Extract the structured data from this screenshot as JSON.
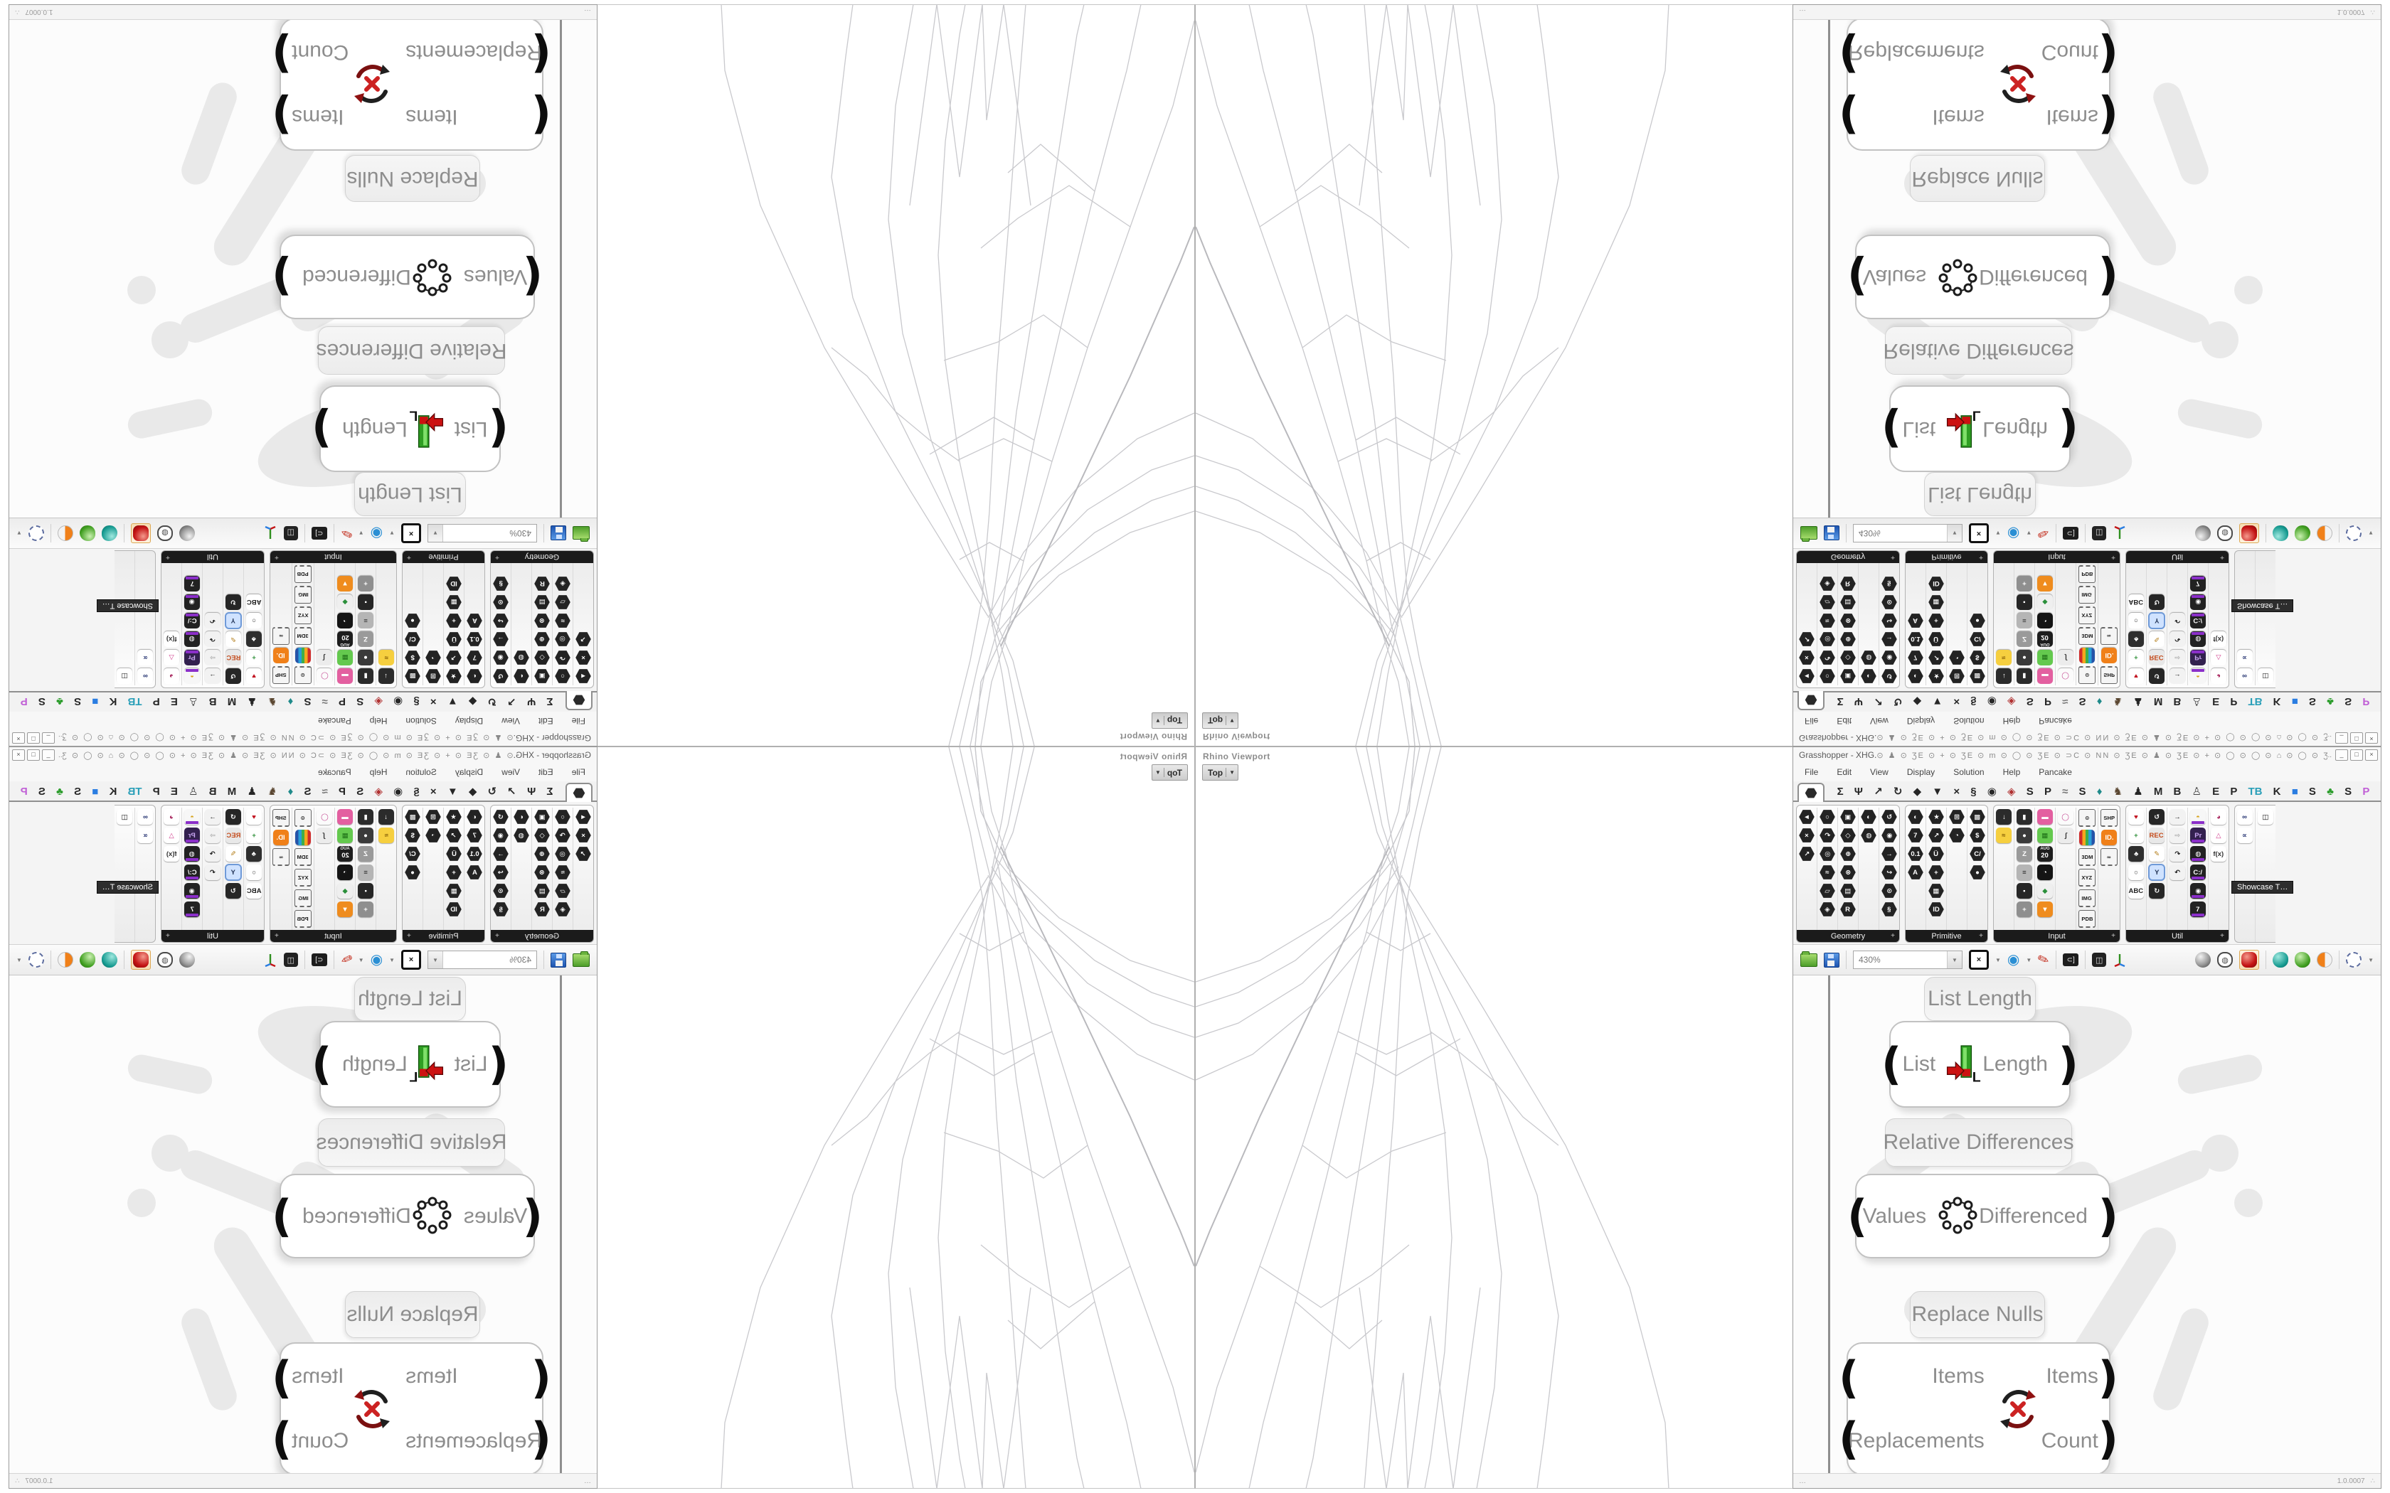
{
  "accent_colors": {
    "gh_green": "#3fae49",
    "util_purple": "#8b2fc9",
    "red": "#c41414"
  },
  "window": {
    "title": "Grasshopper - XHG.",
    "titlebar_glyphs": "⊙ ♟ ⊙ ƷE ⊙ + ⊙ ƷE ⊙ m ⊙ ◯ ⊙ ƷE ⊙ ⊃C ⊙ NN ⊙ ƷE ⊙ ♟ ⊙ ƷE ⊙ + ⊙ ◯ ⊙ ◯ ⊙ ⌂ ⊙ ◯ ⊙ ƷE ⊙ ♟ ⊙ ∩ ⊙ +",
    "window_buttons": {
      "dots": "..",
      "minimize": "_",
      "maximize": "□",
      "close": "×"
    },
    "menu": [
      "File",
      "Edit",
      "View",
      "Display",
      "Solution",
      "Help",
      "Pancake"
    ]
  },
  "tabs": {
    "selected": "params-hexagon",
    "items": [
      {
        "g": "Σ"
      },
      {
        "g": "Ψ"
      },
      {
        "g": "↗"
      },
      {
        "g": "↻"
      },
      {
        "g": "◆"
      },
      {
        "g": "▼"
      },
      {
        "g": "×"
      },
      {
        "g": "§"
      },
      {
        "g": "◉"
      },
      {
        "g": "◈",
        "c": "#b03030"
      },
      {
        "g": "S"
      },
      {
        "g": "P"
      },
      {
        "g": "≈",
        "c": "#777777"
      },
      {
        "g": "S"
      },
      {
        "g": "♦",
        "c": "#1f8a8a"
      },
      {
        "g": "♞",
        "c": "#5a4630"
      },
      {
        "g": "♟"
      },
      {
        "g": "M"
      },
      {
        "g": "B"
      },
      {
        "g": "♙",
        "c": "#444444"
      },
      {
        "g": "E"
      },
      {
        "g": "P"
      },
      {
        "g": "TB",
        "c": "#2a9fb8"
      },
      {
        "g": "K"
      },
      {
        "g": "■",
        "c": "#2a7de1"
      },
      {
        "g": "S"
      },
      {
        "g": "♣",
        "c": "#2f9e2f"
      },
      {
        "g": "S"
      },
      {
        "g": "P",
        "c": "#c05fd6"
      }
    ]
  },
  "palettes": [
    {
      "name": "Geometry",
      "shape": "hexs",
      "columns": [
        [
          {
            "g": "◄"
          },
          {
            "g": "×"
          },
          {
            "g": "↗"
          }
        ],
        [
          {
            "g": "○"
          },
          {
            "g": "↷"
          },
          {
            "g": "◎"
          },
          {
            "g": "≈"
          },
          {
            "g": "▱"
          },
          {
            "g": "◈"
          }
        ],
        [
          {
            "g": "▣"
          },
          {
            "g": "◇"
          },
          {
            "g": "⊕"
          },
          {
            "g": "⊗"
          },
          {
            "g": "▤"
          },
          {
            "g": "R"
          }
        ],
        [
          {
            "g": "◐"
          },
          {
            "g": "◍"
          }
        ],
        [
          {
            "g": "↺"
          },
          {
            "g": "◉"
          },
          {
            "g": "→"
          },
          {
            "g": "↪"
          },
          {
            "g": "⊙"
          },
          {
            "g": "§"
          }
        ]
      ]
    },
    {
      "name": "Primitive",
      "shape": "hexs",
      "columns": [
        [
          {
            "g": "◐"
          },
          {
            "g": "7"
          },
          {
            "g": "0.1"
          },
          {
            "g": "A"
          }
        ],
        [
          {
            "g": "★"
          },
          {
            "g": "↗"
          },
          {
            "g": "Ü"
          },
          {
            "g": "+"
          },
          {
            "g": "▦"
          },
          {
            "g": "ID"
          }
        ],
        [
          {
            "g": "⊞"
          },
          {
            "g": "◔"
          }
        ],
        [
          {
            "g": "▩"
          },
          {
            "g": "$"
          },
          {
            "g": "C/"
          },
          {
            "g": "●"
          }
        ]
      ]
    },
    {
      "name": "Input",
      "shape": "",
      "columns": [
        [
          {
            "g": "↓",
            "bg": "#2b2b2b"
          },
          {
            "g": "≈",
            "bg": "#f6cf3f",
            "fg": "#7a5200"
          }
        ],
        [
          {
            "g": "▮",
            "bg": "#2b2b2b"
          },
          {
            "g": "●",
            "bg": "#3a3a3a"
          },
          {
            "g": "Z",
            "bg": "#9a9a9a"
          },
          {
            "g": "≡",
            "bg": "#b5b5b5",
            "fg": "#333333"
          },
          {
            "g": "▪",
            "bg": "#262626"
          },
          {
            "g": "+",
            "bg": "#8f8f8f"
          }
        ],
        [
          {
            "g": "▬",
            "bg": "#e35fa0"
          },
          {
            "g": "▦",
            "bg": "#64c94e",
            "fg": "#1e6f17"
          },
          {
            "g": "20",
            "k": "cal",
            "cap": "AUG",
            "bg": "#1d1d1d"
          },
          {
            "g": "◔",
            "bg": "#141414"
          },
          {
            "g": "◆",
            "bg": "#efefef",
            "fg": "#2a8f3a"
          },
          {
            "g": "▼",
            "bg": "#ef8c1e"
          }
        ],
        [
          {
            "g": "◯",
            "bg": "#fbfbfb",
            "fg": "#c2458f"
          },
          {
            "g": "∫",
            "bg": "#ececec",
            "fg": "#333333"
          }
        ],
        [
          {
            "g": "⊙",
            "k": "film"
          },
          {
            "g": "",
            "k": "stripes"
          },
          {
            "g": "3DM",
            "k": "film"
          },
          {
            "g": "XYZ",
            "k": "film"
          },
          {
            "g": "IMG",
            "k": "film"
          },
          {
            "g": "PDB",
            "k": "film"
          }
        ],
        [
          {
            "g": "SHP",
            "k": "film"
          },
          {
            "g": "ID.",
            "bg": "#f08019"
          },
          {
            "g": "∞",
            "k": "film"
          }
        ]
      ]
    },
    {
      "name": "Util",
      "shape": "",
      "columns": [
        [
          {
            "g": "♥",
            "bg": "#ffffff",
            "fg": "#c1121f"
          },
          {
            "g": "+",
            "bg": "#ffffff",
            "fg": "#2f8f3a"
          },
          {
            "g": "♣",
            "bg": "#2e2e2e"
          },
          {
            "g": "○",
            "bg": "#ffffff",
            "fg": "#333333"
          },
          {
            "g": "ABC",
            "bg": "#ffffff",
            "fg": "#222222"
          }
        ],
        [
          {
            "g": "↺",
            "bg": "#262626"
          },
          {
            "g": "REC",
            "bg": "#e8e8e8",
            "fg": "#c44a1a"
          },
          {
            "g": "✎",
            "bg": "#ffffff",
            "fg": "#b5801f"
          },
          {
            "g": "Y",
            "bg": "#cfe2ff",
            "fg": "#223355",
            "sel": true
          },
          {
            "g": "↻",
            "bg": "#262626"
          }
        ],
        [
          {
            "g": "→",
            "bg": "#f2f2f2",
            "fg": "#111111"
          },
          {
            "g": "⇨",
            "bg": "#f2f2f2",
            "fg": "#aaaaaa"
          },
          {
            "g": "↷",
            "bg": "#f2f2f2",
            "fg": "#111111"
          },
          {
            "g": "↶",
            "bg": "#f2f2f2",
            "fg": "#111111"
          }
        ],
        [
          {
            "g": "◓",
            "bg": "#f7f7f7",
            "fg": "#d7a31a",
            "bar": "#8b2fc9"
          },
          {
            "g": "Pr",
            "bg": "#33214f",
            "fg": "#c9a6f2",
            "bar": "#8b2fc9"
          },
          {
            "g": "◍",
            "bg": "#222222",
            "bar": "#8b2fc9"
          },
          {
            "g": "C:/",
            "bg": "#222222",
            "bar": "#8b2fc9"
          },
          {
            "g": "◉",
            "bg": "#222222",
            "bar": "#8b2fc9"
          },
          {
            "g": "7",
            "bg": "#222222",
            "bar": "#8b2fc9"
          }
        ],
        [
          {
            "g": "◕",
            "bg": "#ffffff",
            "fg": "#a8275e"
          },
          {
            "g": "△",
            "bg": "#ffffff",
            "fg": "#d23f8e"
          },
          {
            "g": "f(x)",
            "bg": "#ffffff",
            "fg": "#333333"
          }
        ]
      ]
    },
    {
      "name": "",
      "shape": "",
      "cut": true,
      "tooltip": "Showcase T…",
      "columns": [
        [
          {
            "g": "∞",
            "bg": "#ffffff",
            "fg": "#1b2a6b"
          },
          {
            "g": "∝",
            "bg": "#ffffff",
            "fg": "#1b2a6b"
          }
        ],
        [
          {
            "g": "◫",
            "bg": "#ffffff",
            "fg": "#111111"
          }
        ]
      ]
    }
  ],
  "toolbar": {
    "zoom_value": "430%"
  },
  "canvas": {
    "groups": {
      "list_length_label": "List Length",
      "relative_differences_label": "Relative Differences",
      "replace_nulls_label": "Replace Nulls"
    },
    "components": {
      "list_length": {
        "input": "List",
        "output": "Length"
      },
      "relative_differences": {
        "input": "Values",
        "output": "Differenced"
      },
      "replace_nulls": {
        "input1": "Items",
        "input2": "Replacements",
        "output1": "Items",
        "output2": "Count"
      }
    }
  },
  "statusbar": {
    "left": "…",
    "version": "1.0.0007",
    "grip": "∴"
  },
  "viewport": {
    "label": "Rhino Viewport",
    "view_name": "Top",
    "dropdown_arrow": "▼",
    "wireframe": [
      {
        "p": "308,0 300,90 262,170 300,90 308,0"
      },
      {
        "p": "0,330 90,300 190,240 262,170 300,90 308,0"
      },
      {
        "p": "300,0 285,90 265,150 240,260 200,400 150,560 90,730 30,900 5,1000 0,1020"
      },
      {
        "p": "315,0 295,100 275,170 255,280 225,430 185,600 140,780 95,950 75,1043"
      },
      {
        "p": "330,0 305,110 285,190 270,300 250,470 220,650 190,840 165,1000 155,1043"
      },
      {
        "p": "345,0 315,120 298,210 288,330 278,520 262,720 247,920 237,1043"
      },
      {
        "p": "255,0 270,100 282,160 300,260 330,400 350,540 360,690 350,850 330,1000 322,1043"
      },
      {
        "p": "240,0 262,110 285,180 320,290 370,430 410,580 430,740 420,900 395,1043"
      },
      {
        "p": "225,0 255,120 290,200 345,320 420,470 480,630 510,800 490,970 480,1043"
      },
      {
        "p": "280,155 220,230 140,300 60,345 0,365"
      },
      {
        "p": "285,168 230,252 150,332 60,388 0,408"
      },
      {
        "p": "290,180 240,272 165,362 80,432 0,468"
      },
      {
        "p": "272,140 180,330 90,520 20,680 0,730",
        "w": 2,
        "c": "#b9b9bd"
      },
      {
        "p": "290,182 400,360 520,560 610,760 660,950 665,1043"
      },
      {
        "p": "230,760 268,1043 292,880 298,1043 330,800 362,1043 400,760"
      },
      {
        "p": "200,400 268,432 332,402"
      },
      {
        "p": "150,560 212,606 276,568 352,542"
      },
      {
        "p": "90,730 176,788 248,742 300,700"
      },
      {
        "p": "240,260 288,286 330,262"
      },
      {
        "p": "225,430 282,462 338,430 372,410"
      },
      {
        "p": "140,780 216,846 262,806"
      },
      {
        "p": "330,400 372,430 420,470 460,520 510,560"
      }
    ]
  }
}
